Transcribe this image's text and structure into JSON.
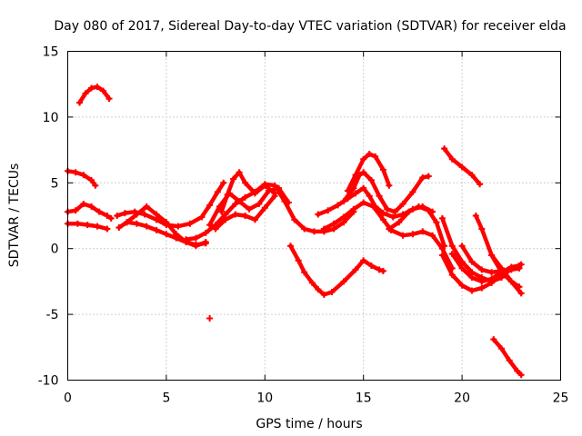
{
  "chart_data": {
    "type": "scatter",
    "title": "Day 080 of 2017, Sidereal Day-to-day VTEC variation (SDTVAR) for receiver elda",
    "xlabel": "GPS time / hours",
    "ylabel": "SDTVAR / TECUs",
    "xlim": [
      0,
      25
    ],
    "ylim": [
      -10,
      15
    ],
    "xticks": [
      0,
      5,
      10,
      15,
      20,
      25
    ],
    "yticks": [
      -10,
      -5,
      0,
      5,
      10,
      15
    ],
    "grid": true,
    "marker": "+",
    "color": "#ff0000",
    "series": [
      {
        "name": "trace-1",
        "x": [
          0.6,
          0.9,
          1.2,
          1.5,
          1.8,
          2.1
        ],
        "y": [
          11.1,
          11.8,
          12.2,
          12.3,
          12.0,
          11.4
        ]
      },
      {
        "name": "trace-2",
        "x": [
          0.0,
          0.4,
          0.8,
          1.2,
          1.4
        ],
        "y": [
          5.9,
          5.8,
          5.6,
          5.2,
          4.8
        ]
      },
      {
        "name": "trace-3",
        "x": [
          0.0,
          0.4,
          0.8,
          1.2,
          1.6,
          2.0,
          2.2
        ],
        "y": [
          2.8,
          2.9,
          3.4,
          3.2,
          2.8,
          2.5,
          2.3
        ]
      },
      {
        "name": "trace-4",
        "x": [
          0.0,
          0.5,
          1.0,
          1.5,
          2.0
        ],
        "y": [
          1.9,
          1.9,
          1.8,
          1.7,
          1.5
        ]
      },
      {
        "name": "trace-5",
        "x": [
          2.5,
          2.9,
          3.4,
          3.9,
          4.5,
          5.0,
          5.6,
          6.2,
          6.8,
          7.2,
          7.6,
          7.9
        ],
        "y": [
          2.5,
          2.7,
          2.8,
          2.6,
          2.2,
          1.8,
          1.7,
          1.9,
          2.4,
          3.3,
          4.3,
          5.0
        ]
      },
      {
        "name": "trace-6",
        "x": [
          2.6,
          3.0,
          3.5,
          4.0,
          4.5,
          5.0,
          5.5,
          6.0,
          6.5,
          7.0
        ],
        "y": [
          1.6,
          2.0,
          2.6,
          3.2,
          2.6,
          2.0,
          1.1,
          0.5,
          0.2,
          0.5
        ]
      },
      {
        "name": "trace-7",
        "x": [
          3.0,
          3.5,
          4.0,
          4.5,
          5.0,
          5.5,
          6.0,
          6.5,
          7.0
        ],
        "y": [
          2.0,
          1.9,
          1.7,
          1.4,
          1.1,
          0.8,
          0.5,
          0.3,
          0.4
        ]
      },
      {
        "name": "trace-8",
        "x": [
          6.0,
          6.5,
          7.0,
          7.5,
          8.0,
          8.5,
          9.0,
          9.5,
          10.0,
          10.5,
          11.0,
          11.5,
          12.0,
          12.5,
          13.0,
          13.5,
          14.0,
          14.5
        ],
        "y": [
          0.7,
          0.8,
          1.2,
          1.8,
          2.6,
          3.4,
          3.9,
          4.3,
          4.9,
          4.8,
          3.6,
          2.2,
          1.5,
          1.3,
          1.3,
          1.5,
          2.0,
          2.8
        ]
      },
      {
        "name": "trace-9",
        "x": [
          7.2,
          7.7,
          8.2,
          8.7,
          9.2,
          9.7,
          10.2,
          10.7,
          11.2
        ],
        "y": [
          1.8,
          3.2,
          4.2,
          3.6,
          3.0,
          3.4,
          4.4,
          4.6,
          3.5
        ]
      },
      {
        "name": "trace-10",
        "x": [
          7.8,
          8.1,
          8.4,
          8.7,
          9.0,
          9.5,
          10.0,
          10.5
        ],
        "y": [
          2.8,
          4.1,
          5.3,
          5.8,
          5.0,
          4.2,
          4.8,
          4.2
        ]
      },
      {
        "name": "trace-11",
        "x": [
          7.5,
          8.0,
          8.5,
          9.0,
          9.5,
          10.0,
          10.5
        ],
        "y": [
          1.5,
          2.2,
          2.6,
          2.5,
          2.2,
          3.1,
          4.0
        ]
      },
      {
        "name": "trace-12",
        "x": [
          11.3,
          11.7,
          12.0,
          12.4,
          12.7,
          13.0,
          13.4,
          14.0,
          14.6,
          15.0,
          15.4,
          15.8,
          16.0
        ],
        "y": [
          0.2,
          -0.9,
          -1.8,
          -2.6,
          -3.1,
          -3.5,
          -3.3,
          -2.5,
          -1.6,
          -0.9,
          -1.3,
          -1.6,
          -1.7
        ]
      },
      {
        "name": "trace-13",
        "x": [
          12.7,
          13.2,
          13.7,
          14.2,
          14.6,
          15.0,
          15.3,
          15.6,
          16.0,
          16.5,
          17.0,
          17.5,
          18.0,
          18.5
        ],
        "y": [
          2.6,
          2.9,
          3.3,
          3.8,
          4.2,
          4.6,
          4.0,
          3.2,
          2.7,
          2.4,
          2.6,
          3.0,
          3.2,
          2.8
        ]
      },
      {
        "name": "trace-14",
        "x": [
          13.0,
          13.5,
          14.0,
          14.5,
          15.0,
          15.5,
          16.0,
          16.4,
          17.0,
          17.5,
          18.0,
          18.5,
          19.0,
          19.5
        ],
        "y": [
          1.5,
          1.9,
          2.4,
          3.0,
          3.5,
          3.2,
          2.2,
          1.4,
          1.0,
          1.1,
          1.3,
          1.0,
          0.0,
          -1.5
        ]
      },
      {
        "name": "trace-15",
        "x": [
          14.0,
          14.5,
          14.8,
          15.0,
          15.4,
          15.8,
          16.2,
          16.6,
          17.0,
          17.5,
          18.0,
          18.3
        ],
        "y": [
          3.6,
          4.6,
          5.6,
          5.8,
          5.2,
          4.0,
          3.0,
          2.8,
          3.4,
          4.3,
          5.4,
          5.5
        ]
      },
      {
        "name": "trace-16",
        "x": [
          14.2,
          14.6,
          15.0,
          15.3,
          15.6,
          16.0,
          16.3
        ],
        "y": [
          4.4,
          5.6,
          6.8,
          7.2,
          7.0,
          6.0,
          4.8
        ]
      },
      {
        "name": "trace-17",
        "x": [
          16.3,
          16.8,
          17.3,
          17.8,
          18.3,
          18.7,
          19.1
        ],
        "y": [
          1.5,
          2.0,
          2.8,
          3.2,
          2.9,
          2.0,
          0.2
        ]
      },
      {
        "name": "trace-18",
        "x": [
          19.0,
          19.5,
          20.0,
          20.5,
          21.0,
          21.5,
          22.0,
          22.5,
          22.9
        ],
        "y": [
          2.3,
          0.2,
          -1.0,
          -1.8,
          -2.2,
          -2.5,
          -2.2,
          -1.5,
          -1.3
        ]
      },
      {
        "name": "trace-19",
        "x": [
          19.0,
          19.5,
          20.0,
          20.5,
          21.0,
          21.5,
          22.0,
          22.5,
          23.0
        ],
        "y": [
          -0.5,
          -2.0,
          -2.8,
          -3.2,
          -3.0,
          -2.6,
          -2.0,
          -1.5,
          -1.2
        ]
      },
      {
        "name": "trace-20",
        "x": [
          19.5,
          20.0,
          20.5,
          21.0,
          21.5,
          22.0,
          22.5,
          22.9
        ],
        "y": [
          -0.4,
          -1.5,
          -2.2,
          -2.5,
          -2.3,
          -1.8,
          -1.4,
          -1.3
        ]
      },
      {
        "name": "trace-21",
        "x": [
          20.0,
          20.5,
          21.0,
          21.5,
          22.0,
          22.5,
          22.9
        ],
        "y": [
          0.2,
          -1.0,
          -1.6,
          -1.8,
          -1.7,
          -1.6,
          -1.5
        ]
      },
      {
        "name": "trace-22",
        "x": [
          20.7,
          21.0,
          21.5,
          22.0,
          22.5,
          22.9
        ],
        "y": [
          2.5,
          1.5,
          -0.5,
          -1.8,
          -2.5,
          -2.9
        ]
      },
      {
        "name": "trace-23",
        "x": [
          21.5,
          22.0,
          22.5,
          23.0
        ],
        "y": [
          -0.5,
          -1.5,
          -2.5,
          -3.4
        ]
      },
      {
        "name": "trace-24",
        "x": [
          19.1,
          19.5,
          20.0,
          20.5,
          20.9
        ],
        "y": [
          7.6,
          6.8,
          6.2,
          5.6,
          4.9
        ]
      },
      {
        "name": "trace-25",
        "x": [
          21.6,
          22.0,
          22.4,
          22.8,
          23.0
        ],
        "y": [
          -6.9,
          -7.6,
          -8.5,
          -9.3,
          -9.6
        ]
      },
      {
        "name": "trace-26",
        "x": [
          7.2
        ],
        "y": [
          -5.3
        ]
      }
    ]
  }
}
